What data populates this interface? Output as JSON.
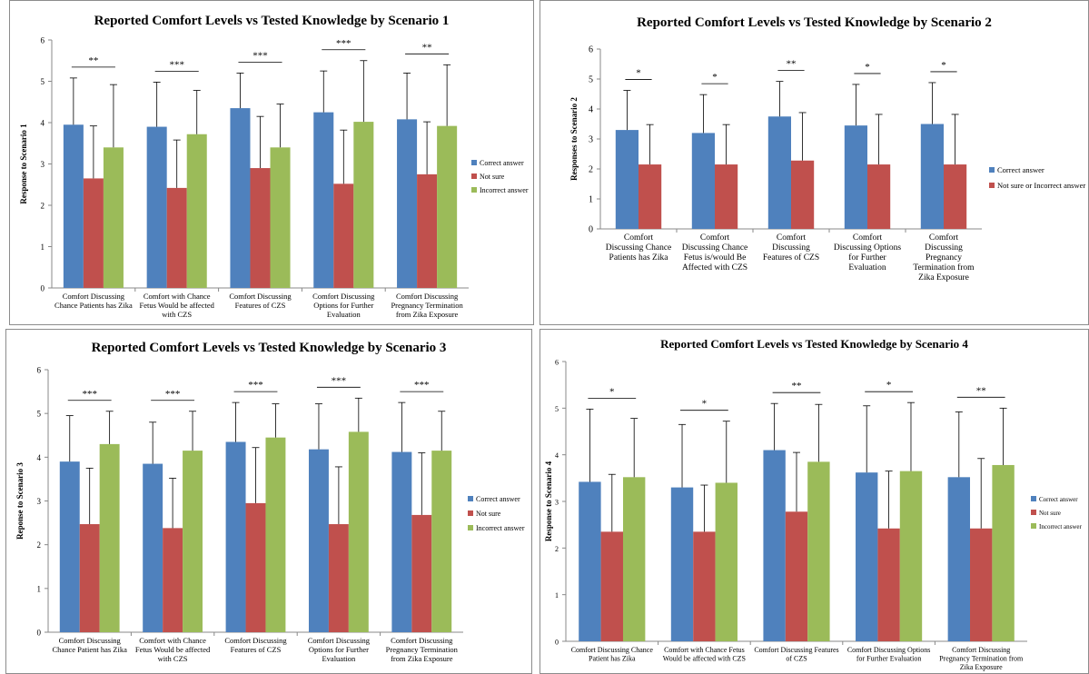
{
  "chart_data": [
    {
      "type": "bar",
      "title": "Reported Comfort Levels vs Tested Knowledge by Scenario 1",
      "ylabel": "Response to Scenario 1",
      "ylim": [
        0,
        6
      ],
      "yticks": [
        "0",
        "1",
        "2",
        "3",
        "4",
        "5",
        "6"
      ],
      "categories": [
        [
          "Comfort Discussing",
          "Chance Patients has Zika"
        ],
        [
          "Comfort with Chance",
          "Fetus Would be affected",
          "with CZS"
        ],
        [
          "Comfort Discussing",
          "Features of CZS"
        ],
        [
          "Comfort Discussing",
          "Options for Further",
          "Evaluation"
        ],
        [
          "Comfort Discussing",
          "Pregnancy Termination",
          "from Zika Exposure"
        ]
      ],
      "series": [
        {
          "name": "Correct answer",
          "color": "#4f81bd",
          "values": [
            3.95,
            3.9,
            4.35,
            4.25,
            4.08
          ],
          "err_high": [
            5.08,
            4.98,
            5.2,
            5.25,
            5.2
          ]
        },
        {
          "name": "Not sure",
          "color": "#c0504d",
          "values": [
            2.65,
            2.42,
            2.9,
            2.52,
            2.75
          ],
          "err_high": [
            3.92,
            3.58,
            4.15,
            3.82,
            4.02
          ]
        },
        {
          "name": "Incorrect answer",
          "color": "#9bbb59",
          "values": [
            3.4,
            3.72,
            3.4,
            4.02,
            3.92
          ],
          "err_high": [
            4.92,
            4.78,
            4.45,
            5.5,
            5.4
          ]
        }
      ],
      "significance": [
        "**",
        "***",
        "***",
        "***",
        "**"
      ],
      "legend": "right"
    },
    {
      "type": "bar",
      "title": "Reported Comfort Levels vs Tested Knowledge by Scenario 2",
      "ylabel": "Responses to Scenario 2",
      "ylim": [
        0,
        6
      ],
      "yticks": [
        "0",
        "1",
        "2",
        "3",
        "4",
        "5",
        "6"
      ],
      "categories": [
        [
          "Comfort",
          "Discussing Chance",
          "Patients has Zika"
        ],
        [
          "Comfort",
          "Discussing Chance",
          "Fetus is/would Be",
          "Affected with CZS"
        ],
        [
          "Comfort",
          "Discussing",
          "Features of CZS"
        ],
        [
          "Comfort",
          "Discussing Options",
          "for Further",
          "Evaluation"
        ],
        [
          "Comfort",
          "Discussing",
          "Pregnancy",
          "Termination from",
          "Zika Exposure"
        ]
      ],
      "series": [
        {
          "name": "Correct answer",
          "color": "#4f81bd",
          "values": [
            3.3,
            3.2,
            3.75,
            3.45,
            3.5
          ],
          "err_high": [
            4.62,
            4.48,
            4.92,
            4.82,
            4.88
          ]
        },
        {
          "name": "Not sure or Incorrect answer",
          "color": "#c0504d",
          "values": [
            2.15,
            2.15,
            2.28,
            2.15,
            2.15
          ],
          "err_high": [
            3.48,
            3.48,
            3.88,
            3.82,
            3.82
          ]
        }
      ],
      "significance": [
        "*",
        "*",
        "**",
        "*",
        "*"
      ],
      "legend": "right"
    },
    {
      "type": "bar",
      "title": "Reported Comfort Levels vs Tested Knowledge by Scenario 3",
      "ylabel": "Reponse to Scenario 3",
      "ylim": [
        0,
        6
      ],
      "yticks": [
        "0",
        "1",
        "2",
        "3",
        "4",
        "5",
        "6"
      ],
      "categories": [
        [
          "Comfort Discussing",
          "Chance Patient has Zika"
        ],
        [
          "Comfort with Chance",
          "Fetus Would be affected",
          "with CZS"
        ],
        [
          "Comfort Discussing",
          "Features of CZS"
        ],
        [
          "Comfort Discussing",
          "Options for Further",
          "Evaluation"
        ],
        [
          "Comfort Discussing",
          "Pregnancy Termination",
          "from Zika Exposure"
        ]
      ],
      "series": [
        {
          "name": "Correct answer",
          "color": "#4f81bd",
          "values": [
            3.9,
            3.85,
            4.35,
            4.18,
            4.12
          ],
          "err_high": [
            4.95,
            4.8,
            5.25,
            5.22,
            5.25
          ]
        },
        {
          "name": "Not sure",
          "color": "#c0504d",
          "values": [
            2.47,
            2.38,
            2.95,
            2.47,
            2.68
          ],
          "err_high": [
            3.75,
            3.52,
            4.22,
            3.78,
            4.1
          ]
        },
        {
          "name": "Incorrect answer",
          "color": "#9bbb59",
          "values": [
            4.3,
            4.15,
            4.45,
            4.58,
            4.15
          ],
          "err_high": [
            5.05,
            5.05,
            5.22,
            5.35,
            5.05
          ]
        }
      ],
      "significance": [
        "***",
        "***",
        "***",
        "***",
        "***"
      ],
      "legend": "right"
    },
    {
      "type": "bar",
      "title": "Reported Comfort Levels vs Tested Knowledge by Scenario 4",
      "ylabel": "Response to Scenario 4",
      "ylim": [
        0,
        6
      ],
      "yticks": [
        "0",
        "1",
        "2",
        "3",
        "4",
        "5",
        "6"
      ],
      "categories": [
        [
          "Comfort Discussing Chance",
          "Patient has Zika"
        ],
        [
          "Comfort with Chance Fetus",
          "Would be affected with CZS"
        ],
        [
          "Comfort Discussing Features",
          "of CZS"
        ],
        [
          "Comfort Discussing Options",
          "for Further Evaluation"
        ],
        [
          "Comfort Discussing",
          "Pregnancy Termination from",
          "Zika Exposure"
        ]
      ],
      "series": [
        {
          "name": "Correct answer",
          "color": "#4f81bd",
          "values": [
            3.42,
            3.3,
            4.1,
            3.62,
            3.52
          ],
          "err_high": [
            4.98,
            4.65,
            5.1,
            5.05,
            4.92
          ]
        },
        {
          "name": "Not sure",
          "color": "#c0504d",
          "values": [
            2.35,
            2.35,
            2.78,
            2.42,
            2.42
          ],
          "err_high": [
            3.58,
            3.35,
            4.05,
            3.65,
            3.92
          ]
        },
        {
          "name": "Incorrect answer",
          "color": "#9bbb59",
          "values": [
            3.52,
            3.4,
            3.85,
            3.65,
            3.78
          ],
          "err_high": [
            4.78,
            4.72,
            5.08,
            5.12,
            5.0
          ]
        }
      ],
      "significance": [
        "*",
        "*",
        "**",
        "*",
        "**"
      ],
      "legend": "right"
    }
  ]
}
